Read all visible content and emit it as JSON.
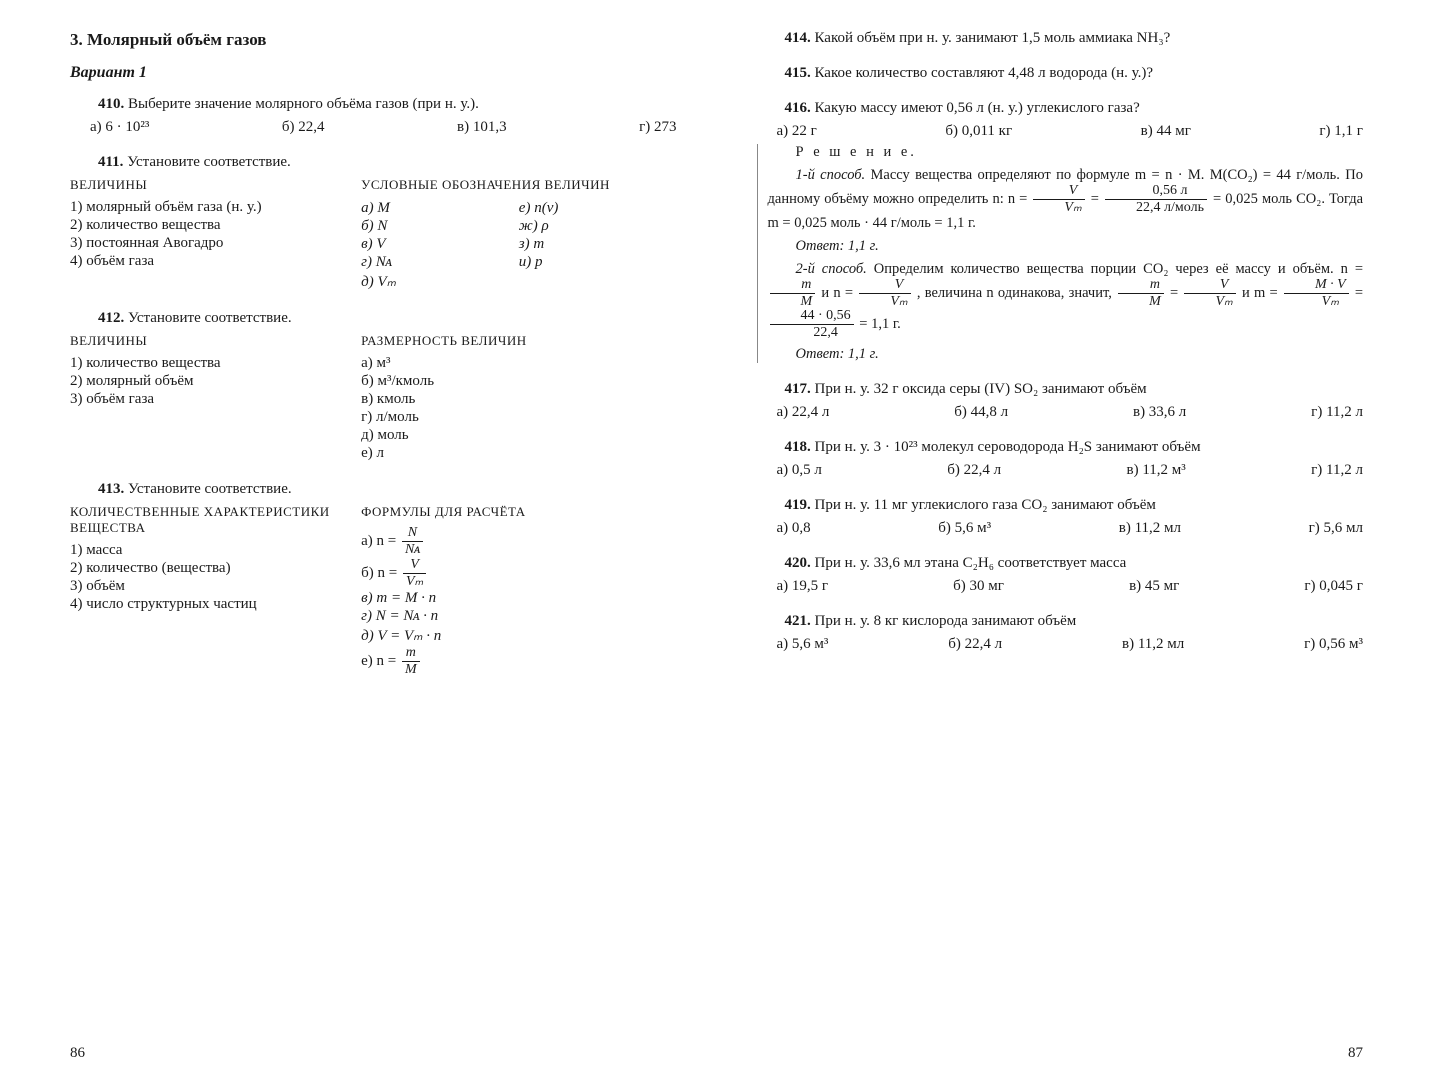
{
  "meta": {
    "text_color": "#1a1a1a",
    "background_color": "#ffffff",
    "body_fontsize_pt": 11,
    "font_family": "Georgia/Times serif"
  },
  "left": {
    "section_title": "3. Молярный объём газов",
    "variant": "Вариант 1",
    "t410": {
      "num": "410.",
      "text": "Выберите значение молярного объёма газов (при н. у.).",
      "opts": [
        "а) 6 · 10²³",
        "б) 22,4",
        "в) 101,3",
        "г) 273"
      ]
    },
    "t411": {
      "num": "411.",
      "text": "Установите соответствие.",
      "hdr_l": "ВЕЛИЧИНЫ",
      "hdr_r": "УСЛОВНЫЕ ОБОЗНАЧЕНИЯ ВЕЛИЧИН",
      "left_items": [
        "1) молярный объём газа (н. у.)",
        "2) количество вещества",
        "3) постоянная Авогадро",
        "4) объём газа"
      ],
      "right_a": [
        "а) M",
        "б) N",
        "в) V",
        "г) Nᴀ",
        "д) Vₘ"
      ],
      "right_b": [
        "е) n(ν)",
        "ж) ρ",
        "з) m",
        "и) p"
      ]
    },
    "t412": {
      "num": "412.",
      "text": "Установите соответствие.",
      "hdr_l": "ВЕЛИЧИНЫ",
      "hdr_r": "РАЗМЕРНОСТЬ ВЕЛИЧИН",
      "left_items": [
        "1) количество вещества",
        "2) молярный объём",
        "3) объём газа"
      ],
      "right_items": [
        "а) м³",
        "б) м³/кмоль",
        "в) кмоль",
        "г) л/моль",
        "д) моль",
        "е) л"
      ]
    },
    "t413": {
      "num": "413.",
      "text": "Установите соответствие.",
      "hdr_l": "КОЛИЧЕСТВЕННЫЕ ХАРАКТЕРИСТИКИ ВЕЩЕСТВА",
      "hdr_r": "ФОРМУЛЫ ДЛЯ РАСЧЁТА",
      "left_items": [
        "1) масса",
        "2) количество (вещества)",
        "3) объём",
        "4) число структурных частиц"
      ],
      "formulas": {
        "a_label": "а) n =",
        "a_num": "N",
        "a_den": "Nᴀ",
        "b_label": "б) n =",
        "b_num": "V",
        "b_den": "Vₘ",
        "c": "в) m = M · n",
        "d": "г) N = Nᴀ · n",
        "e": "д) V = Vₘ · n",
        "f_label": "е) n =",
        "f_num": "m",
        "f_den": "M"
      }
    },
    "pagenum": "86"
  },
  "right": {
    "t414": {
      "num": "414.",
      "text": "Какой объём при н. у. занимают 1,5 моль аммиака NH₃?"
    },
    "t415": {
      "num": "415.",
      "text": "Какое количество составляют 4,48 л водорода (н. у.)?"
    },
    "t416": {
      "num": "416.",
      "text": "Какую массу имеют 0,56 л (н. у.) углекислого газа?",
      "opts": [
        "а) 22 г",
        "б) 0,011 кг",
        "в) 44 мг",
        "г) 1,1 г"
      ],
      "sol_title": "Р е ш е н и е.",
      "sol1_label": "1-й способ.",
      "sol1_a": "Массу вещества определяют по формуле m = n · M. M(CO₂) = 44 г/моль. По данному объёму можно определить n: n =",
      "sol1_frac1_num": "V",
      "sol1_frac1_den": "Vₘ",
      "sol1_eq": "=",
      "sol1_frac2_num": "0,56 л",
      "sol1_frac2_den": "22,4 л/моль",
      "sol1_b": "= 0,025 моль CO₂. Тогда m = 0,025 моль · 44 г/моль = 1,1 г.",
      "ans1": "Ответ: 1,1 г.",
      "sol2_label": "2-й способ.",
      "sol2_a": "Определим количество вещества порции CO₂ через её массу и объём. n =",
      "sol2_f1_num": "m",
      "sol2_f1_den": "M",
      "sol2_and": "и n =",
      "sol2_f2_num": "V",
      "sol2_f2_den": "Vₘ",
      "sol2_b": ", величина n одинакова, значит,",
      "sol2_f3_num": "m",
      "sol2_f3_den": "M",
      "sol2_eq2": "=",
      "sol2_f4_num": "V",
      "sol2_f4_den": "Vₘ",
      "sol2_c": "и m =",
      "sol2_f5_num": "M · V",
      "sol2_f5_den": "Vₘ",
      "sol2_eq3": "=",
      "sol2_f6_num": "44 · 0,56",
      "sol2_f6_den": "22,4",
      "sol2_d": "= 1,1 г.",
      "ans2": "Ответ: 1,1 г."
    },
    "t417": {
      "num": "417.",
      "text": "При н. у. 32 г оксида серы (IV) SO₂ занимают объём",
      "opts": [
        "а) 22,4 л",
        "б) 44,8 л",
        "в) 33,6 л",
        "г) 11,2 л"
      ]
    },
    "t418": {
      "num": "418.",
      "text": "При н. у. 3 · 10²³ молекул сероводорода H₂S занимают объём",
      "opts": [
        "а) 0,5 л",
        "б) 22,4 л",
        "в) 11,2 м³",
        "г) 11,2 л"
      ]
    },
    "t419": {
      "num": "419.",
      "text": "При н. у. 11 мг углекислого газа CO₂ занимают объём",
      "opts": [
        "а) 0,8",
        "б) 5,6 м³",
        "в) 11,2 мл",
        "г) 5,6 мл"
      ]
    },
    "t420": {
      "num": "420.",
      "text": "При н. у. 33,6 мл этана C₂H₆ соответствует масса",
      "opts": [
        "а) 19,5 г",
        "б) 30 мг",
        "в) 45 мг",
        "г) 0,045 г"
      ]
    },
    "t421": {
      "num": "421.",
      "text": "При н. у. 8 кг кислорода занимают объём",
      "opts": [
        "а) 5,6 м³",
        "б) 22,4 л",
        "в) 11,2 мл",
        "г) 0,56 м³"
      ]
    },
    "pagenum": "87"
  }
}
